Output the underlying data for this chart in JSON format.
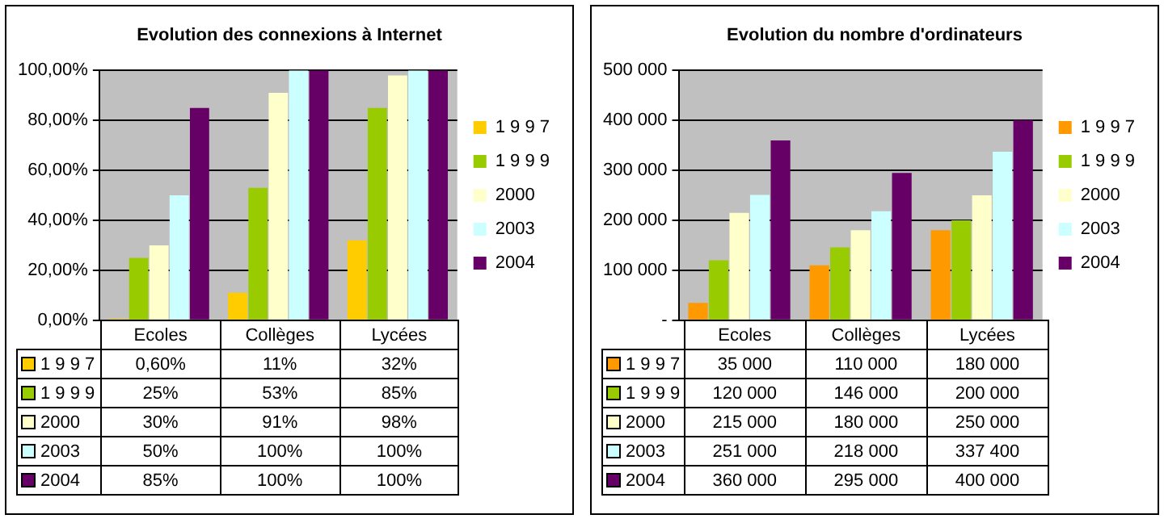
{
  "chart_data": [
    {
      "type": "bar",
      "title": "Evolution des connexions à Internet",
      "categories": [
        "Ecoles",
        "Collèges",
        "Lycées"
      ],
      "series": [
        {
          "name": "1 9 9 7",
          "color": "#ffcc00",
          "values": [
            0.6,
            11,
            32
          ],
          "value_labels": [
            "0,60%",
            "11%",
            "32%"
          ]
        },
        {
          "name": "1 9 9 9",
          "color": "#99cc00",
          "values": [
            25,
            53,
            85
          ],
          "value_labels": [
            "25%",
            "53%",
            "85%"
          ]
        },
        {
          "name": "2000",
          "color": "#ffffcc",
          "values": [
            30,
            91,
            98
          ],
          "value_labels": [
            "30%",
            "91%",
            "98%"
          ]
        },
        {
          "name": "2003",
          "color": "#ccffff",
          "values": [
            50,
            100,
            100
          ],
          "value_labels": [
            "50%",
            "100%",
            "100%"
          ]
        },
        {
          "name": "2004",
          "color": "#660066",
          "values": [
            85,
            100,
            100
          ],
          "value_labels": [
            "85%",
            "100%",
            "100%"
          ]
        }
      ],
      "ylim": [
        0,
        100
      ],
      "yticks": [
        {
          "value": 0,
          "label": "0,00%"
        },
        {
          "value": 20,
          "label": "20,00%"
        },
        {
          "value": 40,
          "label": "40,00%"
        },
        {
          "value": 60,
          "label": "60,00%"
        },
        {
          "value": 80,
          "label": "80,00%"
        },
        {
          "value": 100,
          "label": "100,00%"
        }
      ],
      "grid": "y",
      "legend": "right"
    },
    {
      "type": "bar",
      "title": "Evolution du nombre d'ordinateurs",
      "categories": [
        "Ecoles",
        "Collèges",
        "Lycées"
      ],
      "series": [
        {
          "name": "1 9 9 7",
          "color": "#ff9900",
          "values": [
            35000,
            110000,
            180000
          ],
          "value_labels": [
            "35 000",
            "110 000",
            "180 000"
          ]
        },
        {
          "name": "1 9 9 9",
          "color": "#99cc00",
          "values": [
            120000,
            146000,
            200000
          ],
          "value_labels": [
            "120 000",
            "146 000",
            "200 000"
          ]
        },
        {
          "name": "2000",
          "color": "#ffffcc",
          "values": [
            215000,
            180000,
            250000
          ],
          "value_labels": [
            "215 000",
            "180 000",
            "250 000"
          ]
        },
        {
          "name": "2003",
          "color": "#ccffff",
          "values": [
            251000,
            218000,
            337400
          ],
          "value_labels": [
            "251 000",
            "218 000",
            "337 400"
          ]
        },
        {
          "name": "2004",
          "color": "#660066",
          "values": [
            360000,
            295000,
            400000
          ],
          "value_labels": [
            "360 000",
            "295 000",
            "400 000"
          ]
        }
      ],
      "ylim": [
        0,
        500000
      ],
      "yticks": [
        {
          "value": 0,
          "label": "-"
        },
        {
          "value": 100000,
          "label": "100 000"
        },
        {
          "value": 200000,
          "label": "200 000"
        },
        {
          "value": 300000,
          "label": "300 000"
        },
        {
          "value": 400000,
          "label": "400 000"
        },
        {
          "value": 500000,
          "label": "500 000"
        }
      ],
      "grid": "y",
      "legend": "right"
    }
  ]
}
